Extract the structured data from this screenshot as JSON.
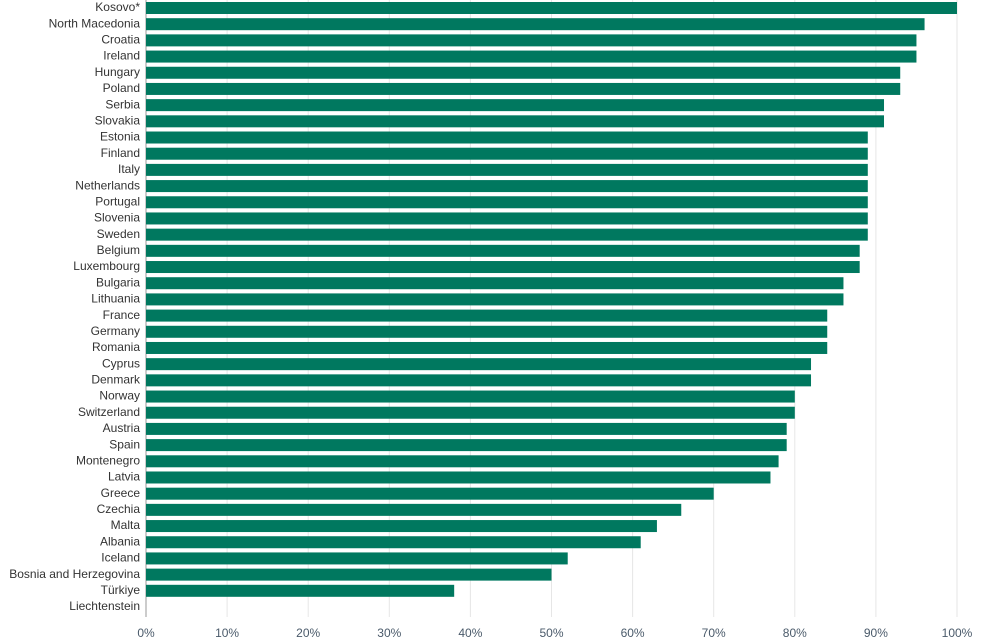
{
  "chart_data": {
    "type": "bar",
    "orientation": "horizontal",
    "categories": [
      "Kosovo*",
      "North Macedonia",
      "Croatia",
      "Ireland",
      "Hungary",
      "Poland",
      "Serbia",
      "Slovakia",
      "Estonia",
      "Finland",
      "Italy",
      "Netherlands",
      "Portugal",
      "Slovenia",
      "Sweden",
      "Belgium",
      "Luxembourg",
      "Bulgaria",
      "Lithuania",
      "France",
      "Germany",
      "Romania",
      "Cyprus",
      "Denmark",
      "Norway",
      "Switzerland",
      "Austria",
      "Spain",
      "Montenegro",
      "Latvia",
      "Greece",
      "Czechia",
      "Malta",
      "Albania",
      "Iceland",
      "Bosnia and Herzegovina",
      "Türkiye",
      "Liechtenstein"
    ],
    "values": [
      100,
      96,
      95,
      95,
      93,
      93,
      91,
      91,
      89,
      89,
      89,
      89,
      89,
      89,
      89,
      88,
      88,
      86,
      86,
      84,
      84,
      84,
      82,
      82,
      80,
      80,
      79,
      79,
      78,
      77,
      70,
      66,
      63,
      61,
      52,
      50,
      38,
      null
    ],
    "color": "#00785f",
    "xlim": [
      0,
      100
    ],
    "xticks": [
      {
        "value": 0,
        "label": "0%"
      },
      {
        "value": 10,
        "label": "10%"
      },
      {
        "value": 20,
        "label": "20%"
      },
      {
        "value": 30,
        "label": "30%"
      },
      {
        "value": 40,
        "label": "40%"
      },
      {
        "value": 50,
        "label": "50%"
      },
      {
        "value": 60,
        "label": "60%"
      },
      {
        "value": 70,
        "label": "70%"
      },
      {
        "value": 80,
        "label": "80%"
      },
      {
        "value": 90,
        "label": "90%"
      },
      {
        "value": 100,
        "label": "100%"
      }
    ],
    "grid": true
  }
}
